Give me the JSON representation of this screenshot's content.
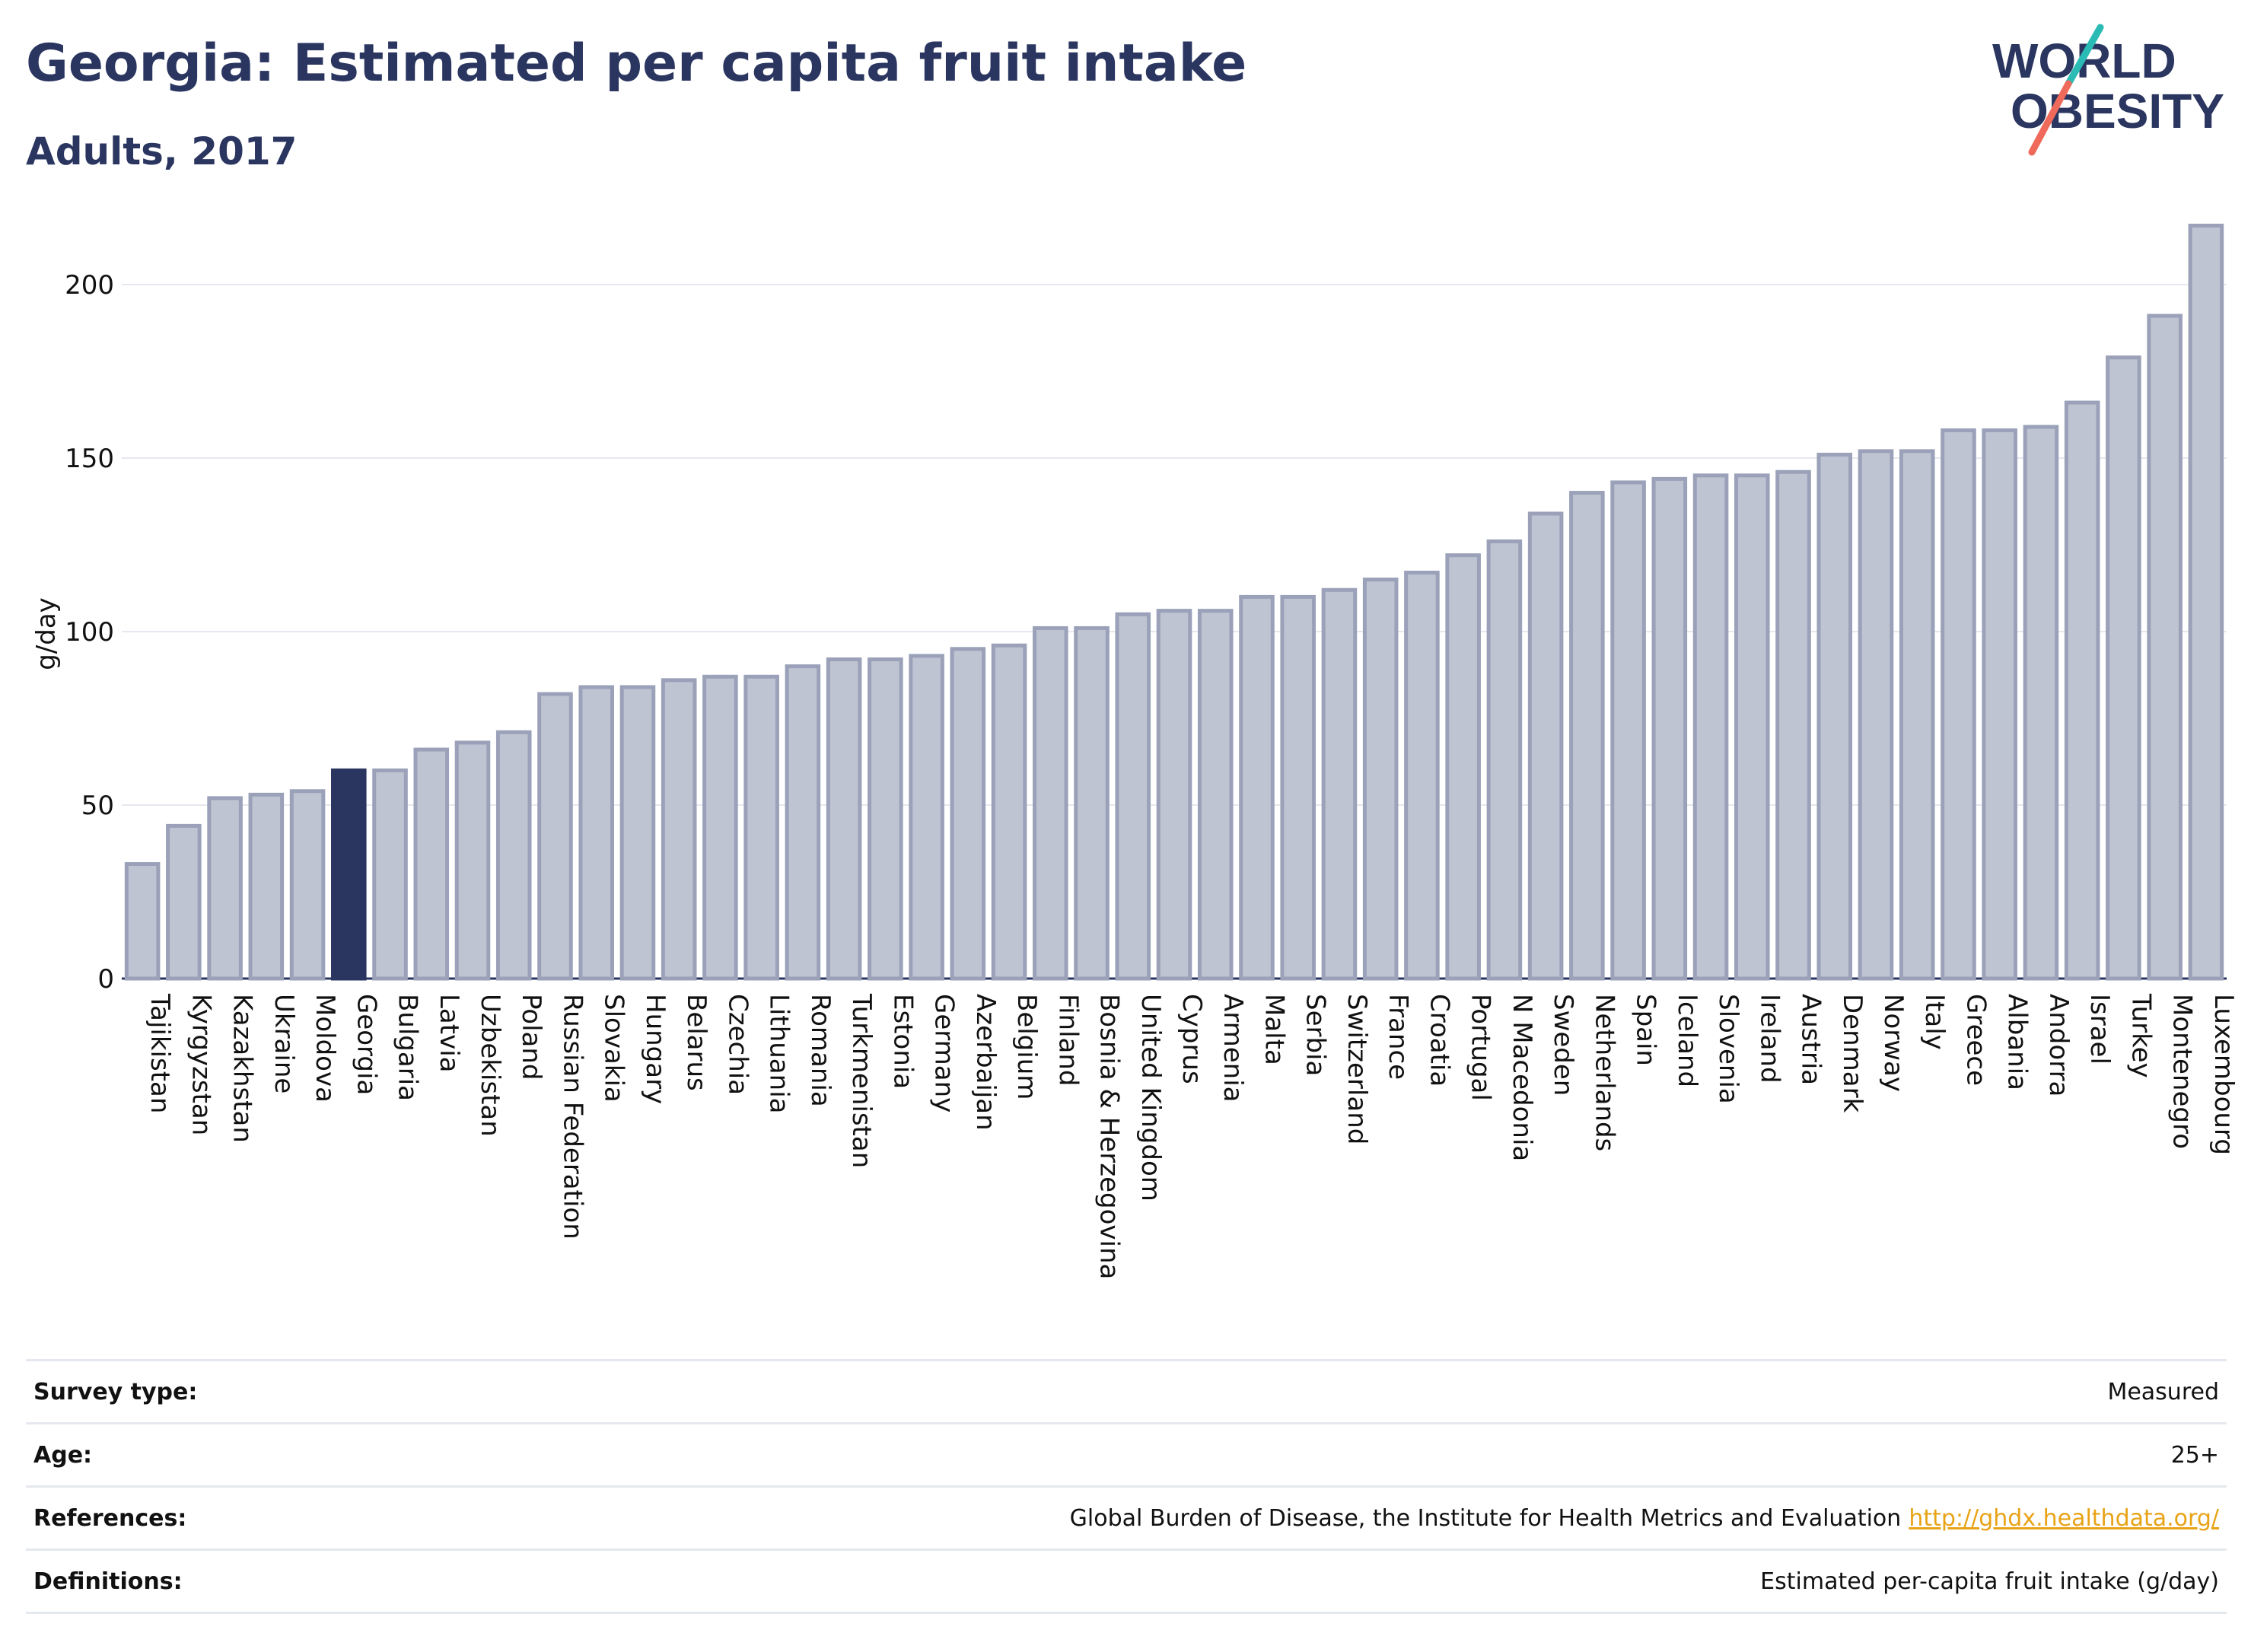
{
  "header": {
    "title": "Georgia: Estimated per capita fruit intake",
    "subtitle": "Adults, 2017"
  },
  "logo": {
    "line1": "WORLD",
    "line2": "OBESITY",
    "colors": {
      "text": "#2a3560",
      "slash_top": "#2bbbb5",
      "slash_bottom": "#ef6a5a"
    }
  },
  "chart_data": {
    "type": "bar",
    "ylabel": "g/day",
    "ylim": [
      0,
      225
    ],
    "yticks": [
      0,
      50,
      100,
      150,
      200
    ],
    "grid": true,
    "highlight": "Georgia",
    "colors": {
      "bar": "#bfc4d3",
      "bar_edge": "#9aa1b8",
      "highlight": "#2a3560",
      "grid": "#e6e8f0",
      "axis": "#2a3560"
    },
    "categories": [
      "Tajikistan",
      "Kyrgyzstan",
      "Kazakhstan",
      "Ukraine",
      "Moldova",
      "Georgia",
      "Bulgaria",
      "Latvia",
      "Uzbekistan",
      "Poland",
      "Russian Federation",
      "Slovakia",
      "Hungary",
      "Belarus",
      "Czechia",
      "Lithuania",
      "Romania",
      "Turkmenistan",
      "Estonia",
      "Germany",
      "Azerbaijan",
      "Belgium",
      "Finland",
      "Bosnia & Herzegovina",
      "United Kingdom",
      "Cyprus",
      "Armenia",
      "Malta",
      "Serbia",
      "Switzerland",
      "France",
      "Croatia",
      "Portugal",
      "N Macedonia",
      "Sweden",
      "Netherlands",
      "Spain",
      "Iceland",
      "Slovenia",
      "Ireland",
      "Austria",
      "Denmark",
      "Norway",
      "Italy",
      "Greece",
      "Albania",
      "Andorra",
      "Israel",
      "Turkey",
      "Montenegro",
      "Luxembourg"
    ],
    "values": [
      33,
      44,
      52,
      53,
      54,
      60,
      60,
      66,
      68,
      71,
      82,
      84,
      84,
      86,
      87,
      87,
      90,
      92,
      92,
      93,
      95,
      96,
      101,
      101,
      105,
      106,
      106,
      110,
      110,
      112,
      115,
      117,
      122,
      126,
      134,
      140,
      143,
      144,
      145,
      145,
      146,
      151,
      152,
      152,
      158,
      158,
      159,
      166,
      179,
      191,
      217
    ]
  },
  "info": {
    "rows": [
      {
        "key": "Survey type:",
        "value": "Measured"
      },
      {
        "key": "Age:",
        "value": "25+"
      },
      {
        "key": "References:",
        "value": "Global Burden of Disease, the Institute for Health Metrics and Evaluation",
        "link": "http://ghdx.healthdata.org/"
      },
      {
        "key": "Definitions:",
        "value": "Estimated per-capita fruit intake (g/day)"
      }
    ]
  }
}
